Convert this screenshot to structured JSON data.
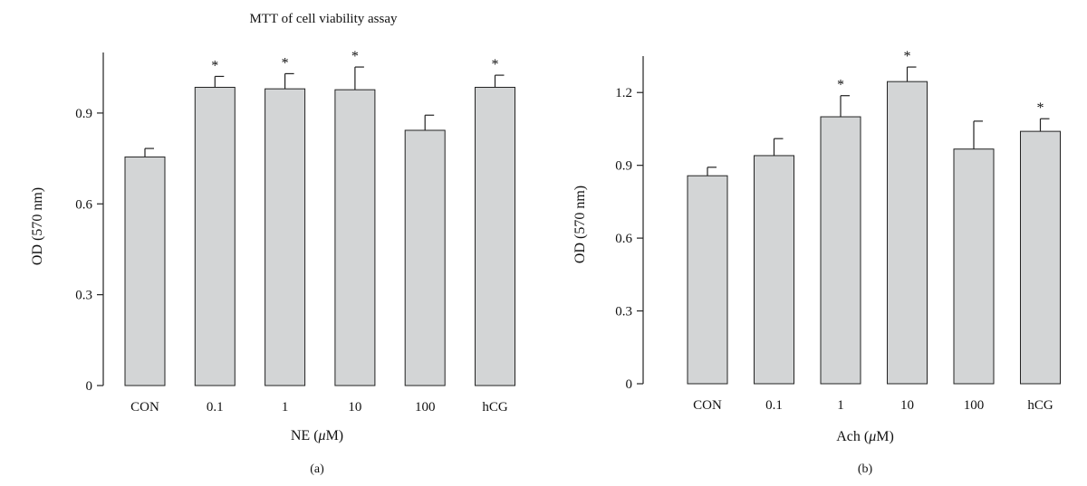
{
  "figure_title": "MTT of cell viability assay",
  "chart_data": [
    {
      "type": "bar",
      "panel_label": "(a)",
      "categories": [
        "CON",
        "0.1",
        "1",
        "10",
        "100",
        "hCG"
      ],
      "values": [
        0.755,
        0.985,
        0.98,
        0.977,
        0.843,
        0.985
      ],
      "errors": [
        0.028,
        0.036,
        0.05,
        0.075,
        0.05,
        0.04
      ],
      "significance": [
        "",
        "*",
        "*",
        "*",
        "",
        "*"
      ],
      "xlabel_prefix": "NE (",
      "xlabel_unit": "μ",
      "xlabel_suffix": "M)",
      "ylabel": "OD (570 nm)",
      "ylim": [
        0,
        1.1
      ],
      "yticks": [
        0,
        0.3,
        0.6,
        0.9
      ],
      "ytick_labels": [
        "0",
        "0.3",
        "0.6",
        "0.9"
      ]
    },
    {
      "type": "bar",
      "panel_label": "(b)",
      "categories": [
        "CON",
        "0.1",
        "1",
        "10",
        "100",
        "hCG"
      ],
      "values": [
        0.857,
        0.94,
        1.1,
        1.245,
        0.967,
        1.04
      ],
      "errors": [
        0.035,
        0.07,
        0.087,
        0.06,
        0.115,
        0.052
      ],
      "significance": [
        "",
        "",
        "*",
        "*",
        "",
        "*"
      ],
      "xlabel_prefix": "Ach (",
      "xlabel_unit": "μ",
      "xlabel_suffix": "M)",
      "ylabel": "OD (570 nm)",
      "ylim": [
        0,
        1.35
      ],
      "yticks": [
        0,
        0.3,
        0.6,
        0.9,
        1.2
      ],
      "ytick_labels": [
        "0",
        "0.3",
        "0.6",
        "0.9",
        "1.2"
      ]
    }
  ]
}
